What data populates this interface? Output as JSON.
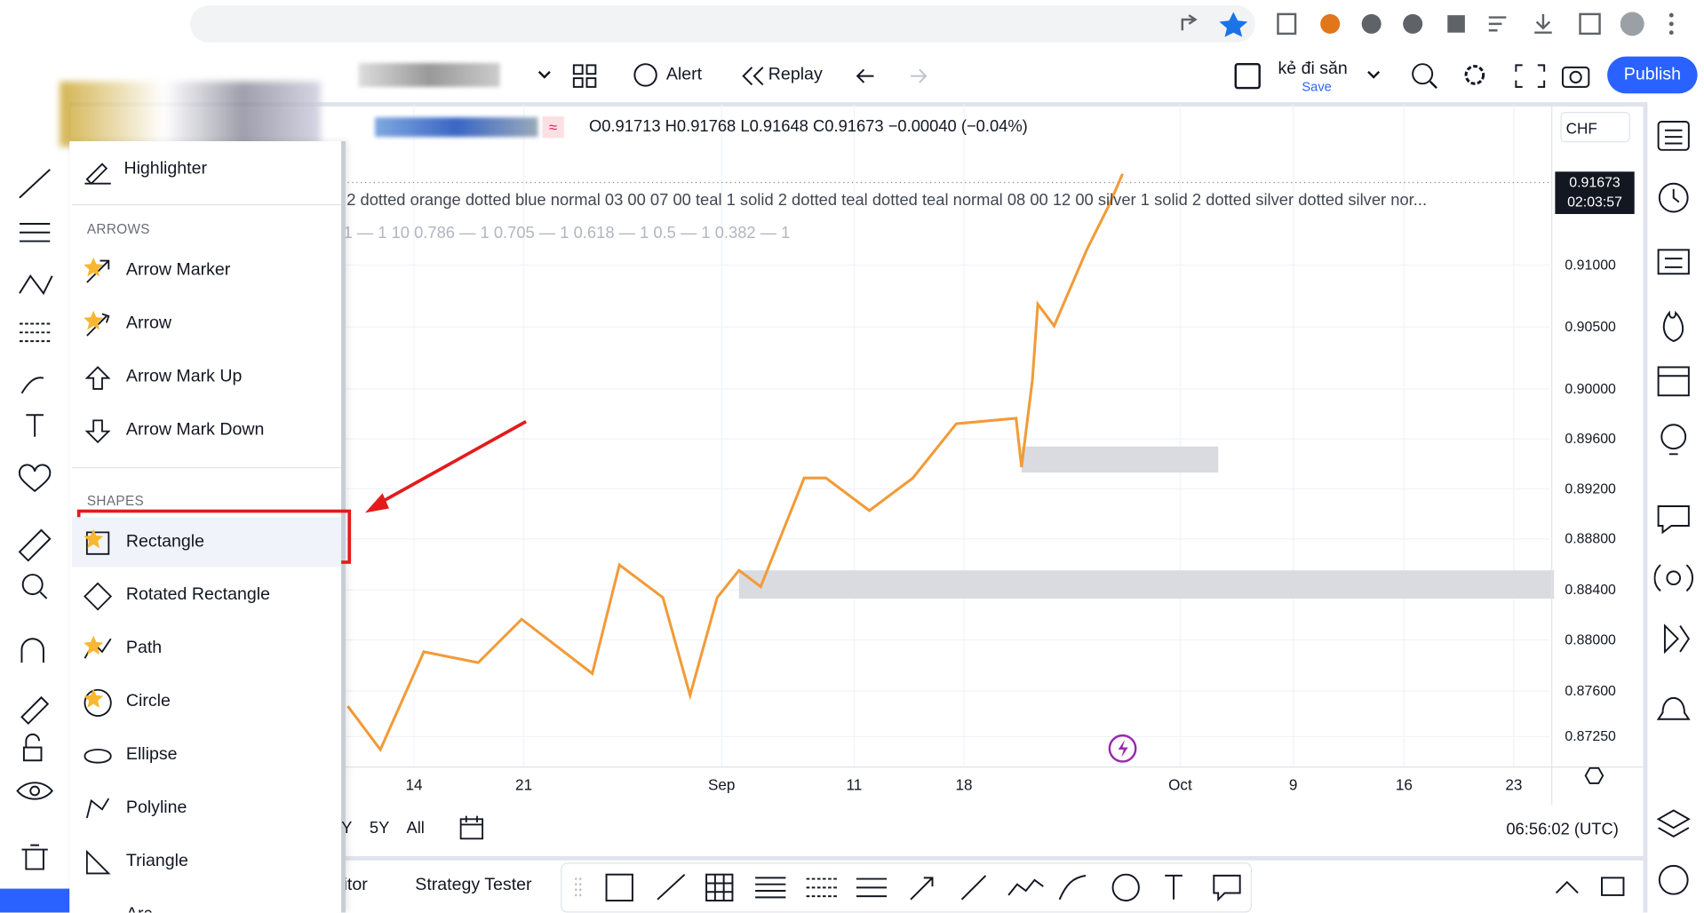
{
  "toolbar": {
    "alert": "Alert",
    "replay": "Replay",
    "layout_name": "kẻ đi săn",
    "save": "Save",
    "publish": "Publish"
  },
  "ohlc": {
    "open": "O0.91713",
    "high": "H0.91768",
    "low": "L0.91648",
    "close": "C0.91673",
    "change": "−0.00040 (−0.04%)"
  },
  "currency": "CHF",
  "indicator_line1": "2 dotted orange dotted blue normal 03 00 07 00 teal 1 solid 2 dotted teal dotted teal normal 08 00 12 00 silver 1 solid 2 dotted silver dotted silver nor...",
  "indicator_line2": "1 — 1 10 0.786 — 1 0.705 — 1 0.618 — 1 0.5 — 1 0.382 — 1",
  "price_badge": {
    "price": "0.91673",
    "countdown": "02:03:57"
  },
  "price_axis": [
    "0.91000",
    "0.90500",
    "0.90000",
    "0.89600",
    "0.89200",
    "0.88800",
    "0.88400",
    "0.88000",
    "0.87600",
    "0.87250"
  ],
  "time_axis": [
    "14",
    "21",
    "Sep",
    "11",
    "18",
    "Oct",
    "9",
    "16",
    "23"
  ],
  "ranges": [
    "Y",
    "5Y",
    "All"
  ],
  "clock": "06:56:02 (UTC)",
  "bottom_tabs": [
    "itor",
    "Strategy Tester"
  ],
  "menu": {
    "top_item": "Highlighter",
    "sections": [
      {
        "title": "ARROWS",
        "items": [
          {
            "label": "Arrow Marker",
            "favorite": true
          },
          {
            "label": "Arrow",
            "favorite": true
          },
          {
            "label": "Arrow Mark Up",
            "favorite": false
          },
          {
            "label": "Arrow Mark Down",
            "favorite": false
          }
        ]
      },
      {
        "title": "SHAPES",
        "items": [
          {
            "label": "Rectangle",
            "favorite": true,
            "highlighted": true
          },
          {
            "label": "Rotated Rectangle",
            "favorite": false
          },
          {
            "label": "Path",
            "favorite": true
          },
          {
            "label": "Circle",
            "favorite": true
          },
          {
            "label": "Ellipse",
            "favorite": false
          },
          {
            "label": "Polyline",
            "favorite": false
          },
          {
            "label": "Triangle",
            "favorite": false
          },
          {
            "label": "Arc",
            "favorite": false
          }
        ]
      }
    ]
  }
}
